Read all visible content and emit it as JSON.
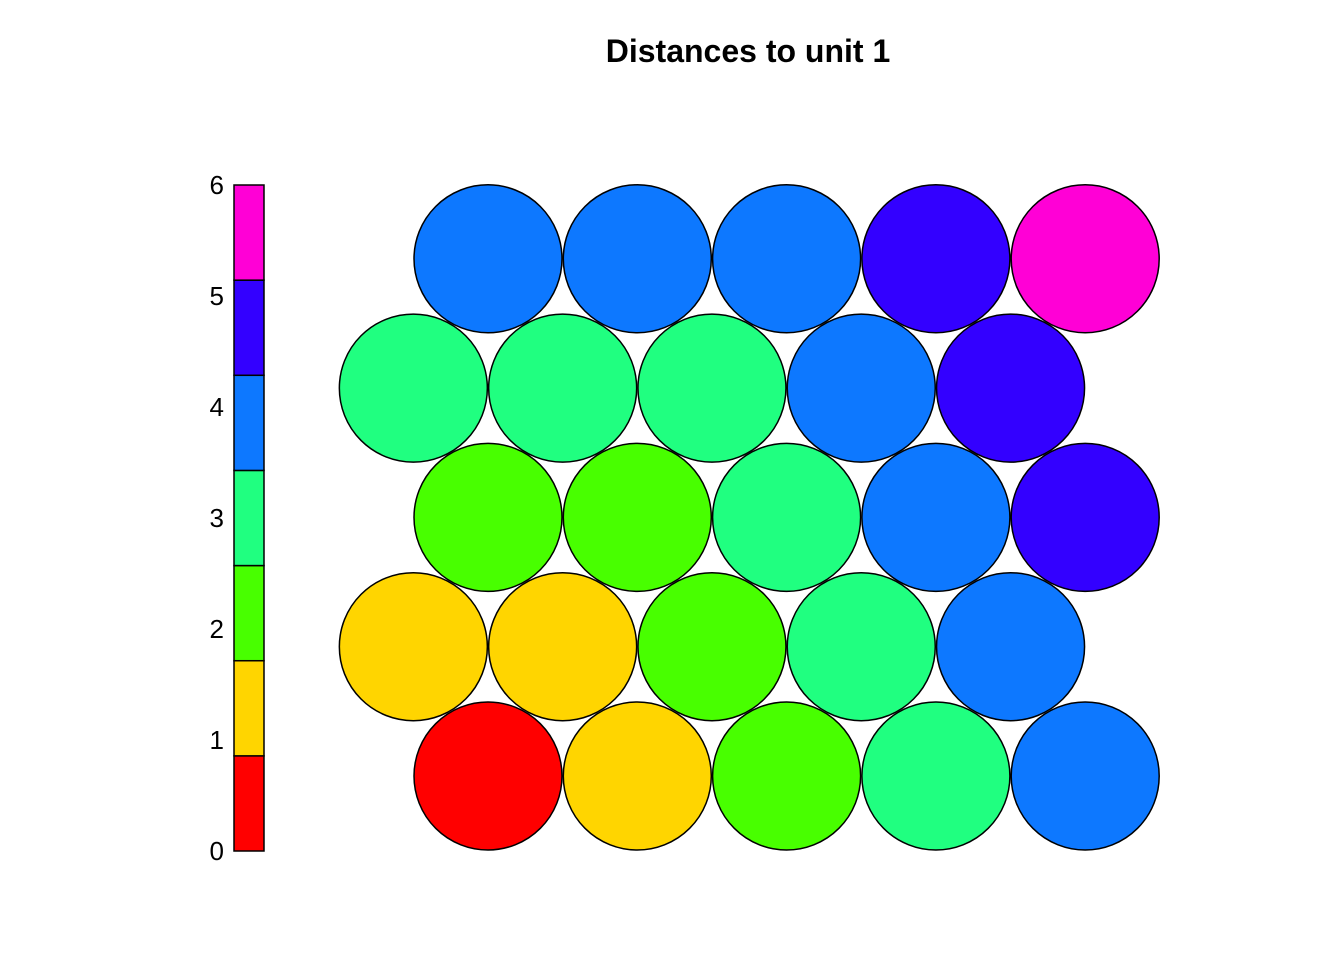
{
  "chart_data": {
    "type": "heatmap",
    "title": "Distances to unit 1",
    "grid": {
      "rows": 5,
      "cols": 5,
      "topology": "hexagonal"
    },
    "values_by_row_bottom_to_top": [
      [
        0,
        1,
        2,
        3,
        4
      ],
      [
        1,
        1,
        2,
        3,
        4
      ],
      [
        2,
        2,
        3,
        4,
        5
      ],
      [
        3,
        3,
        3,
        4,
        5
      ],
      [
        4,
        4,
        4,
        5,
        6
      ]
    ],
    "legend": {
      "placement": "left",
      "range": [
        0,
        6
      ],
      "tick_labels": [
        "0",
        "1",
        "2",
        "3",
        "4",
        "5",
        "6"
      ],
      "colors": [
        "#ff0000",
        "#ffd500",
        "#48ff00",
        "#20ff80",
        "#0d78ff",
        "#3300ff",
        "#ff00d6"
      ]
    }
  }
}
